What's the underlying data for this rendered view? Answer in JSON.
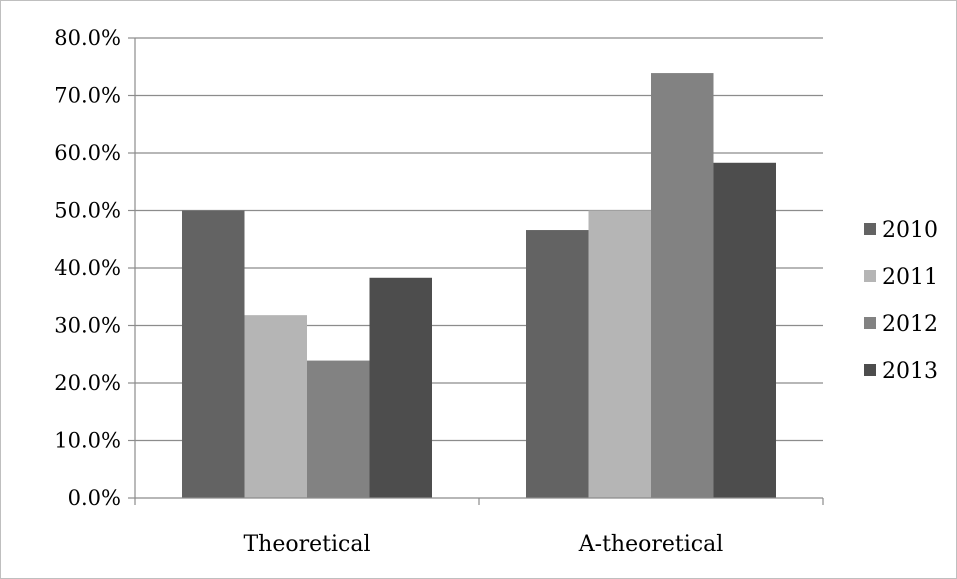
{
  "chart_data": {
    "type": "bar",
    "categories": [
      "Theoretical",
      "A-theoretical"
    ],
    "series": [
      {
        "name": "2010",
        "values": [
          50.0,
          46.6
        ],
        "color": "#636363"
      },
      {
        "name": "2011",
        "values": [
          31.8,
          50.0
        ],
        "color": "#b5b5b5"
      },
      {
        "name": "2012",
        "values": [
          23.9,
          73.9
        ],
        "color": "#828282"
      },
      {
        "name": "2013",
        "values": [
          38.3,
          58.3
        ],
        "color": "#4d4d4d"
      }
    ],
    "y_ticks": [
      "0.0%",
      "10.0%",
      "20.0%",
      "30.0%",
      "40.0%",
      "50.0%",
      "60.0%",
      "70.0%",
      "80.0%"
    ],
    "ylim": [
      0,
      80
    ],
    "y_unit": "%",
    "grid": "horizontal",
    "legend_position": "right",
    "title": "",
    "xlabel": "",
    "ylabel": ""
  }
}
